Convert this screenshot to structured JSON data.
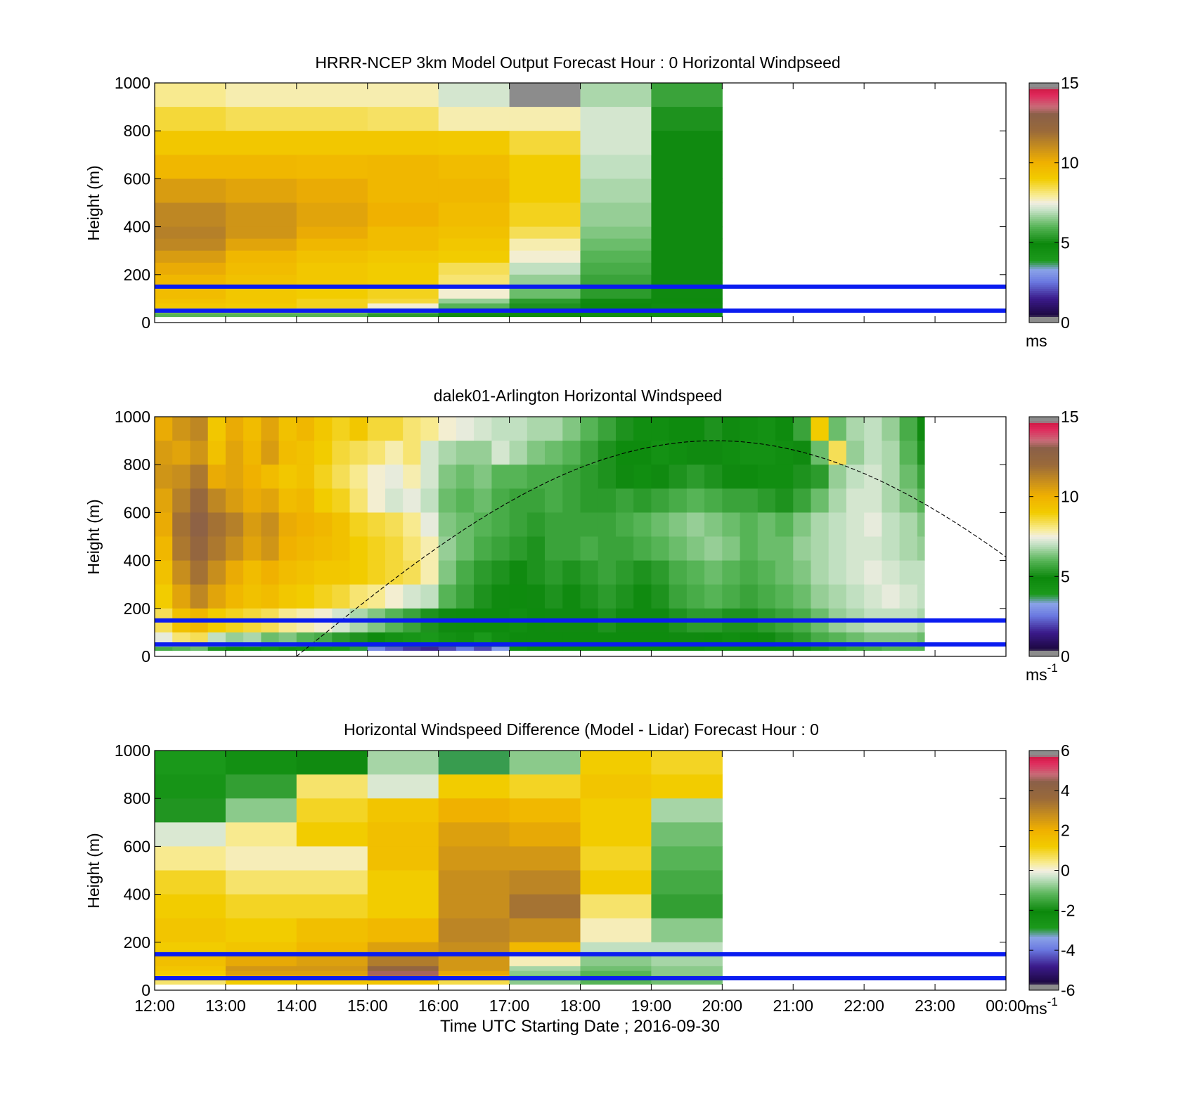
{
  "chart_data": [
    {
      "type": "heatmap",
      "title": "HRRR-NCEP 3km Model Output   Forecast Hour : 0 Horizontal Windpseed",
      "ylabel": "Height (m)",
      "xlabel": "",
      "ylim": [
        0,
        1000
      ],
      "yticks": [
        "0",
        "200",
        "400",
        "600",
        "800",
        "1000"
      ],
      "xlim_hours": [
        12,
        24
      ],
      "colorbar": {
        "min": 0,
        "max": 15,
        "ticks": [
          "0",
          "5",
          "10",
          "15"
        ],
        "unit": "ms",
        "unit_sup": ""
      },
      "colormap": "speed",
      "reference_lines_m": [
        50,
        150
      ],
      "columns_start_hours": [
        12,
        13,
        14,
        15,
        16,
        17,
        18,
        19
      ],
      "rows_top_m": [
        1000,
        900,
        800,
        700,
        600,
        500,
        400,
        350,
        300,
        250,
        200,
        150,
        100,
        80,
        60,
        40
      ],
      "values": [
        [
          8.0,
          7.8,
          7.8,
          7.8,
          7.2,
          15.0,
          6.8,
          5.6
        ],
        [
          8.6,
          8.4,
          8.4,
          8.3,
          7.8,
          7.8,
          7.2,
          5.2
        ],
        [
          9.2,
          9.2,
          9.2,
          9.2,
          9.1,
          8.6,
          7.2,
          5.0
        ],
        [
          9.8,
          9.8,
          9.7,
          9.8,
          9.6,
          9.0,
          7.0,
          5.0
        ],
        [
          10.6,
          10.4,
          10.2,
          9.8,
          9.8,
          9.0,
          6.8,
          5.0
        ],
        [
          11.2,
          10.8,
          10.4,
          10.0,
          9.6,
          8.8,
          6.6,
          5.0
        ],
        [
          11.4,
          10.8,
          10.2,
          9.6,
          9.4,
          8.4,
          6.4,
          5.0
        ],
        [
          11.2,
          10.4,
          9.8,
          9.6,
          9.2,
          7.8,
          6.2,
          5.0
        ],
        [
          10.6,
          9.8,
          9.4,
          9.2,
          9.0,
          7.6,
          6.0,
          5.0
        ],
        [
          10.2,
          9.6,
          9.2,
          9.0,
          8.4,
          7.0,
          5.8,
          5.0
        ],
        [
          9.8,
          9.4,
          9.2,
          9.0,
          8.2,
          6.6,
          5.6,
          5.0
        ],
        [
          9.6,
          9.2,
          9.0,
          8.8,
          7.6,
          6.2,
          5.4,
          5.0
        ],
        [
          9.4,
          9.2,
          8.8,
          8.6,
          6.6,
          5.4,
          5.0,
          4.8
        ],
        [
          9.2,
          9.0,
          8.8,
          7.6,
          6.0,
          5.2,
          4.9,
          4.7
        ],
        [
          8.6,
          8.4,
          8.2,
          7.0,
          5.6,
          5.0,
          4.8,
          4.6
        ],
        [
          6.0,
          6.0,
          6.0,
          5.4,
          5.0,
          4.8,
          4.6,
          4.5
        ]
      ]
    },
    {
      "type": "heatmap",
      "title": "dalek01-Arlington  Horizontal Windspeed",
      "ylabel": "Height (m)",
      "xlabel": "",
      "ylim": [
        0,
        1000
      ],
      "yticks": [
        "0",
        "200",
        "400",
        "600",
        "800",
        "1000"
      ],
      "xlim_hours": [
        12,
        24
      ],
      "colorbar": {
        "min": 0,
        "max": 15,
        "ticks": [
          "0",
          "5",
          "10",
          "15"
        ],
        "unit": "ms",
        "unit_sup": "-1"
      },
      "colormap": "speed",
      "reference_lines_m": [
        50,
        150
      ],
      "columns_start_hours": [
        12.0,
        12.25,
        12.5,
        12.75,
        13.0,
        13.25,
        13.5,
        13.75,
        14.0,
        14.25,
        14.5,
        14.75,
        15.0,
        15.25,
        15.5,
        15.75,
        16.0,
        16.25,
        16.5,
        16.75,
        17.0,
        17.25,
        17.5,
        17.75,
        18.0,
        18.25,
        18.5,
        18.75,
        19.0,
        19.25,
        19.5,
        19.75,
        20.0,
        20.25,
        20.5,
        20.75,
        21.0,
        21.25,
        21.5,
        21.75,
        22.0,
        22.25,
        22.5,
        22.75
      ],
      "columns_end_hour": 22.85,
      "rows_top_m": [
        1000,
        900,
        800,
        700,
        600,
        500,
        400,
        300,
        200,
        100,
        40
      ],
      "values": [
        [
          10.2,
          10.8,
          11.2,
          9.2,
          10.2,
          9.6,
          10.4,
          9.4,
          9.8,
          9.2,
          8.8,
          9.2,
          8.6,
          8.6,
          8.2,
          8.0,
          7.6,
          7.4,
          7.2,
          7.0,
          7.0,
          6.8,
          6.8,
          6.4,
          6.0,
          5.6,
          5.2,
          4.6,
          4.6,
          4.8,
          4.8,
          5.2,
          5.0,
          4.6,
          4.4,
          4.8,
          5.6,
          9.0,
          6.2,
          6.8,
          7.0,
          6.6,
          5.8,
          5.0
        ],
        [
          10.6,
          10.4,
          10.8,
          9.4,
          10.4,
          9.8,
          10.6,
          9.6,
          9.4,
          9.0,
          8.6,
          8.4,
          8.2,
          7.8,
          8.2,
          7.2,
          6.8,
          6.6,
          6.6,
          7.2,
          6.8,
          6.4,
          6.2,
          6.0,
          5.6,
          5.2,
          4.8,
          4.8,
          4.4,
          4.6,
          5.0,
          5.0,
          4.6,
          4.4,
          4.4,
          4.6,
          5.0,
          6.2,
          8.4,
          6.6,
          7.0,
          6.8,
          6.0,
          5.2
        ],
        [
          10.8,
          11.0,
          11.6,
          10.2,
          10.4,
          10.0,
          9.6,
          9.2,
          9.4,
          8.8,
          8.4,
          8.0,
          7.6,
          7.4,
          7.8,
          7.2,
          6.4,
          6.2,
          6.4,
          6.0,
          6.0,
          5.8,
          5.8,
          5.6,
          5.4,
          5.2,
          5.0,
          4.6,
          5.0,
          5.2,
          5.4,
          5.2,
          5.0,
          4.8,
          4.6,
          4.6,
          5.2,
          5.4,
          6.6,
          7.0,
          7.2,
          6.8,
          6.2,
          5.6
        ],
        [
          10.4,
          11.4,
          12.2,
          11.2,
          10.6,
          10.2,
          10.4,
          9.6,
          9.8,
          9.0,
          8.8,
          8.2,
          7.6,
          7.2,
          7.4,
          7.0,
          6.2,
          6.0,
          6.2,
          5.8,
          5.6,
          5.6,
          5.8,
          5.6,
          5.4,
          5.4,
          5.6,
          5.4,
          5.6,
          5.8,
          6.0,
          5.8,
          5.6,
          5.6,
          5.4,
          5.2,
          5.6,
          6.2,
          6.8,
          7.2,
          7.2,
          6.8,
          6.4,
          6.0
        ],
        [
          10.2,
          11.8,
          12.8,
          11.8,
          11.4,
          10.6,
          11.0,
          10.2,
          10.0,
          9.8,
          9.4,
          8.8,
          8.6,
          8.4,
          8.0,
          7.4,
          6.4,
          6.2,
          6.0,
          5.8,
          5.6,
          5.4,
          5.6,
          5.6,
          5.6,
          5.6,
          5.8,
          6.0,
          6.2,
          6.4,
          6.6,
          6.4,
          6.2,
          6.0,
          6.2,
          6.0,
          6.4,
          6.8,
          7.0,
          7.2,
          7.4,
          7.0,
          6.8,
          6.4
        ],
        [
          9.8,
          11.6,
          12.4,
          11.6,
          11.0,
          10.4,
          10.8,
          10.0,
          9.8,
          9.6,
          9.4,
          9.0,
          8.8,
          8.6,
          8.2,
          7.8,
          6.6,
          6.2,
          5.8,
          5.6,
          5.4,
          5.2,
          5.6,
          5.6,
          5.8,
          5.6,
          5.6,
          5.8,
          6.0,
          6.2,
          6.4,
          6.6,
          6.4,
          6.0,
          6.2,
          6.2,
          6.6,
          6.8,
          7.0,
          7.2,
          7.2,
          7.0,
          6.8,
          6.6
        ],
        [
          9.4,
          11.0,
          11.8,
          11.0,
          10.2,
          9.6,
          10.0,
          9.6,
          9.4,
          9.2,
          9.2,
          9.0,
          8.8,
          8.6,
          8.4,
          7.8,
          6.4,
          5.8,
          5.4,
          5.2,
          5.0,
          5.2,
          5.4,
          5.2,
          5.4,
          5.6,
          5.4,
          5.2,
          5.4,
          5.8,
          6.0,
          6.2,
          6.0,
          5.8,
          6.0,
          6.2,
          6.4,
          6.8,
          7.0,
          7.2,
          7.4,
          7.2,
          7.0,
          7.0
        ],
        [
          9.0,
          10.4,
          11.2,
          10.4,
          9.8,
          9.4,
          9.6,
          9.2,
          9.0,
          8.8,
          8.6,
          8.2,
          8.0,
          7.6,
          7.2,
          7.0,
          6.0,
          5.6,
          5.2,
          5.0,
          4.8,
          5.0,
          5.2,
          5.0,
          5.2,
          5.4,
          5.2,
          5.0,
          5.2,
          5.6,
          5.8,
          6.0,
          5.8,
          5.6,
          5.8,
          6.0,
          6.2,
          6.6,
          6.8,
          7.0,
          7.2,
          7.4,
          7.2,
          7.0
        ],
        [
          8.4,
          9.4,
          9.8,
          9.0,
          8.8,
          8.6,
          8.4,
          8.0,
          7.8,
          7.6,
          7.2,
          6.8,
          6.4,
          6.0,
          5.6,
          5.2,
          5.0,
          4.8,
          4.8,
          4.8,
          4.6,
          4.8,
          5.0,
          5.0,
          5.0,
          5.2,
          5.0,
          5.0,
          5.0,
          5.2,
          5.4,
          5.4,
          5.2,
          5.2,
          5.4,
          5.6,
          5.8,
          6.2,
          6.6,
          6.8,
          7.0,
          7.0,
          7.0,
          6.8
        ],
        [
          7.4,
          8.2,
          8.4,
          7.0,
          6.6,
          6.8,
          6.2,
          6.4,
          6.0,
          5.8,
          5.4,
          5.2,
          4.8,
          4.4,
          4.2,
          4.0,
          4.4,
          4.6,
          4.0,
          4.6,
          4.8,
          4.8,
          4.8,
          4.8,
          4.8,
          4.8,
          4.8,
          4.8,
          4.8,
          5.0,
          5.0,
          4.8,
          4.6,
          4.8,
          5.0,
          5.2,
          5.4,
          5.8,
          6.0,
          6.2,
          6.4,
          6.4,
          6.4,
          6.2
        ],
        [
          5.8,
          6.0,
          6.2,
          5.2,
          5.0,
          4.6,
          4.2,
          4.6,
          4.4,
          4.2,
          4.0,
          3.8,
          2.8,
          2.2,
          1.8,
          1.6,
          2.0,
          2.6,
          2.0,
          3.2,
          4.6,
          4.8,
          4.8,
          4.8,
          4.8,
          4.8,
          4.8,
          4.8,
          4.8,
          4.8,
          4.8,
          4.6,
          4.6,
          4.8,
          4.8,
          4.8,
          5.0,
          5.2,
          5.4,
          5.6,
          5.8,
          6.0,
          6.0,
          6.0
        ]
      ],
      "sun_elevation_curve": {
        "start_hour": 14.0,
        "peak_hour": 19.9,
        "peak_height_m": 900,
        "end_value_m": 400
      }
    },
    {
      "type": "heatmap",
      "title": "Horizontal Windspeed Difference (Model - Lidar) Forecast Hour : 0",
      "ylabel": "Height (m)",
      "xlabel": "Time UTC  Starting Date ; 2016-09-30",
      "ylim": [
        0,
        1000
      ],
      "yticks": [
        "0",
        "200",
        "400",
        "600",
        "800",
        "1000"
      ],
      "xticks": [
        "12:00",
        "13:00",
        "14:00",
        "15:00",
        "16:00",
        "17:00",
        "18:00",
        "19:00",
        "20:00",
        "21:00",
        "22:00",
        "23:00",
        "00:00"
      ],
      "xlim_hours": [
        12,
        24
      ],
      "colorbar": {
        "min": -6,
        "max": 6,
        "ticks": [
          "-6",
          "-4",
          "-2",
          "0",
          "2",
          "4",
          "6"
        ],
        "unit": "ms",
        "unit_sup": "-1"
      },
      "colormap": "diff",
      "reference_lines_m": [
        50,
        150
      ],
      "columns_start_hours": [
        12,
        13,
        14,
        15,
        16,
        17,
        18,
        19
      ],
      "rows_top_m": [
        1000,
        900,
        800,
        700,
        600,
        500,
        400,
        300,
        200,
        150,
        100,
        80,
        60,
        40
      ],
      "values": [
        [
          -2.8,
          -2.4,
          -2.0,
          -0.6,
          -3.0,
          -0.8,
          1.2,
          1.0
        ],
        [
          -2.6,
          -1.6,
          0.6,
          -0.2,
          1.2,
          1.0,
          1.4,
          1.2
        ],
        [
          -1.8,
          -0.8,
          1.0,
          1.4,
          2.0,
          1.8,
          1.2,
          -0.6
        ],
        [
          -0.2,
          0.4,
          1.2,
          1.6,
          2.4,
          2.2,
          1.2,
          -1.0
        ],
        [
          0.4,
          0.2,
          0.2,
          1.6,
          2.6,
          2.6,
          1.0,
          -1.2
        ],
        [
          1.0,
          0.6,
          0.6,
          1.2,
          2.8,
          3.0,
          1.2,
          -1.4
        ],
        [
          1.2,
          1.0,
          1.0,
          1.2,
          2.8,
          3.4,
          0.6,
          -1.6
        ],
        [
          1.4,
          1.2,
          1.6,
          1.8,
          3.0,
          2.8,
          0.2,
          -0.8
        ],
        [
          1.2,
          1.4,
          1.8,
          2.4,
          2.8,
          1.8,
          -0.4,
          -0.4
        ],
        [
          1.6,
          2.2,
          2.4,
          3.2,
          2.6,
          0.2,
          -0.8,
          -0.6
        ],
        [
          1.4,
          2.6,
          2.6,
          4.0,
          2.6,
          -0.6,
          -1.0,
          -0.8
        ],
        [
          1.2,
          2.4,
          2.4,
          4.6,
          2.2,
          -0.8,
          -1.2,
          -0.8
        ],
        [
          1.0,
          2.0,
          2.2,
          3.2,
          1.6,
          -1.2,
          -1.4,
          -1.0
        ],
        [
          0.6,
          1.2,
          1.4,
          1.4,
          0.8,
          -0.8,
          -1.2,
          -1.0
        ]
      ]
    }
  ]
}
